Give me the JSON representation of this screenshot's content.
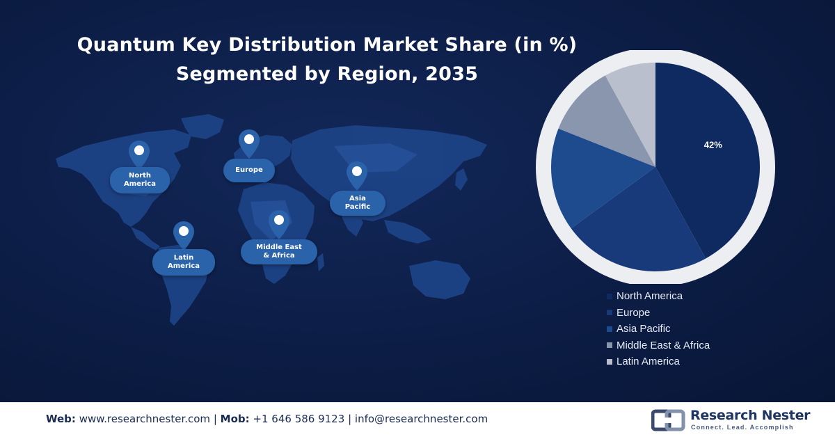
{
  "title_line1": "Quantum Key Distribution Market Share (in %)",
  "title_line2": "Segmented by Region, 2035",
  "map": {
    "regions": [
      {
        "label_line1": "North",
        "label_line2": "America"
      },
      {
        "label_line1": "Europe",
        "label_line2": ""
      },
      {
        "label_line1": "Asia",
        "label_line2": "Pacific"
      },
      {
        "label_line1": "Latin",
        "label_line2": "America"
      },
      {
        "label_line1": "Middle East",
        "label_line2": "& Africa"
      }
    ],
    "pin_icon": "location-pin-icon"
  },
  "chart_data": {
    "type": "pie",
    "title": "Quantum Key Distribution Market Share (in %) Segmented by Region, 2035",
    "categories": [
      "North America",
      "Europe",
      "Asia Pacific",
      "Middle East & Africa",
      "Latin America"
    ],
    "values": [
      42,
      23,
      16,
      11,
      8
    ],
    "colors": [
      "#0f2a60",
      "#183a7a",
      "#1e4a8e",
      "#8a96ad",
      "#b9bfcc"
    ],
    "data_labels": [
      "42%",
      "",
      "",
      "",
      ""
    ],
    "legend_position": "bottom-right",
    "start_angle_deg": 0,
    "direction": "clockwise"
  },
  "footer": {
    "web_label": "Web:",
    "web_value": "www.researchnester.com",
    "mob_label": "Mob:",
    "mob_value": "+1 646 586 9123",
    "email_value": "info@researchnester.com",
    "separator": "|",
    "logo_name": "Research Nester",
    "logo_tagline": "Connect. Lead. Accomplish",
    "logo_icon": "research-nester-logo-icon"
  }
}
